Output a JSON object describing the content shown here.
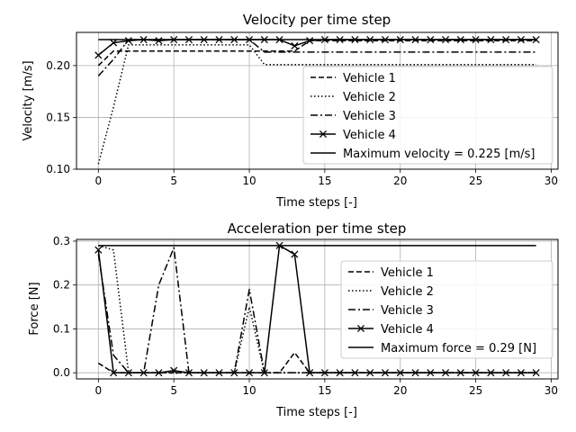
{
  "chart_data": [
    {
      "type": "line",
      "title": "Velocity per time step",
      "xlabel": "Time steps [-]",
      "ylabel": "Velocity [m/s]",
      "xlim": [
        -1.45,
        30.45
      ],
      "ylim": [
        0.1,
        0.232
      ],
      "xticks": [
        0,
        5,
        10,
        15,
        20,
        25,
        30
      ],
      "yticks": [
        0.1,
        0.15,
        0.2
      ],
      "ytick_labels": [
        "0.10",
        "0.15",
        "0.20"
      ],
      "grid": true,
      "legend_position": "lower-right",
      "series": [
        {
          "name": "Vehicle 1",
          "style": "dashed",
          "marker": "none",
          "x": [
            0,
            1,
            2,
            3,
            4,
            5,
            6,
            7,
            8,
            9,
            10,
            11,
            12,
            13,
            14,
            15,
            16,
            17,
            18,
            19,
            20,
            21,
            22,
            23,
            24,
            25,
            26,
            27,
            28,
            29
          ],
          "y": [
            0.2,
            0.214,
            0.214,
            0.214,
            0.214,
            0.214,
            0.214,
            0.214,
            0.214,
            0.214,
            0.214,
            0.214,
            0.214,
            0.214,
            0.224,
            0.224,
            0.224,
            0.224,
            0.224,
            0.224,
            0.224,
            0.224,
            0.224,
            0.224,
            0.224,
            0.224,
            0.224,
            0.224,
            0.224,
            0.224
          ]
        },
        {
          "name": "Vehicle 2",
          "style": "dotted",
          "marker": "none",
          "x": [
            0,
            1,
            2,
            3,
            4,
            5,
            6,
            7,
            8,
            9,
            10,
            11,
            12,
            13,
            14,
            15,
            16,
            17,
            18,
            19,
            20,
            21,
            22,
            23,
            24,
            25,
            26,
            27,
            28,
            29
          ],
          "y": [
            0.105,
            0.16,
            0.22,
            0.22,
            0.22,
            0.22,
            0.22,
            0.22,
            0.22,
            0.22,
            0.22,
            0.201,
            0.201,
            0.201,
            0.201,
            0.201,
            0.201,
            0.201,
            0.201,
            0.201,
            0.201,
            0.201,
            0.201,
            0.201,
            0.201,
            0.201,
            0.201,
            0.201,
            0.201,
            0.201
          ]
        },
        {
          "name": "Vehicle 3",
          "style": "dashdot",
          "marker": "none",
          "x": [
            0,
            1,
            2,
            3,
            4,
            5,
            6,
            7,
            8,
            9,
            10,
            11,
            12,
            13,
            14,
            15,
            16,
            17,
            18,
            19,
            20,
            21,
            22,
            23,
            24,
            25,
            26,
            27,
            28,
            29
          ],
          "y": [
            0.19,
            0.206,
            0.225,
            0.225,
            0.225,
            0.225,
            0.225,
            0.225,
            0.225,
            0.225,
            0.225,
            0.213,
            0.213,
            0.213,
            0.213,
            0.213,
            0.213,
            0.213,
            0.213,
            0.213,
            0.213,
            0.213,
            0.213,
            0.213,
            0.213,
            0.213,
            0.213,
            0.213,
            0.213,
            0.213
          ]
        },
        {
          "name": "Vehicle 4",
          "style": "solid",
          "marker": "x",
          "x": [
            0,
            1,
            2,
            3,
            4,
            5,
            6,
            7,
            8,
            9,
            10,
            11,
            12,
            13,
            14,
            15,
            16,
            17,
            18,
            19,
            20,
            21,
            22,
            23,
            24,
            25,
            26,
            27,
            28,
            29
          ],
          "y": [
            0.21,
            0.222,
            0.224,
            0.225,
            0.224,
            0.225,
            0.225,
            0.225,
            0.225,
            0.225,
            0.225,
            0.225,
            0.225,
            0.219,
            0.224,
            0.225,
            0.225,
            0.225,
            0.225,
            0.225,
            0.225,
            0.225,
            0.225,
            0.225,
            0.225,
            0.225,
            0.225,
            0.225,
            0.225,
            0.225
          ]
        },
        {
          "name": "Maximum velocity = 0.225 [m/s]",
          "style": "solid",
          "marker": "none",
          "x": [
            0,
            29
          ],
          "y": [
            0.225,
            0.225
          ]
        }
      ]
    },
    {
      "type": "line",
      "title": "Acceleration per time step",
      "xlabel": "Time steps [-]",
      "ylabel": "Force [N]",
      "xlim": [
        -1.45,
        30.45
      ],
      "ylim": [
        -0.014,
        0.304
      ],
      "xticks": [
        0,
        5,
        10,
        15,
        20,
        25,
        30
      ],
      "yticks": [
        0.0,
        0.1,
        0.2,
        0.3
      ],
      "ytick_labels": [
        "0.0",
        "0.1",
        "0.2",
        "0.3"
      ],
      "grid": true,
      "legend_position": "right",
      "series": [
        {
          "name": "Vehicle 1",
          "style": "dashed",
          "marker": "none",
          "x": [
            0,
            1,
            2,
            3,
            4,
            5,
            6,
            7,
            8,
            9,
            10,
            11,
            12,
            13,
            14,
            15,
            16,
            17,
            18,
            19,
            20,
            21,
            22,
            23,
            24,
            25,
            26,
            27,
            28,
            29
          ],
          "y": [
            0.022,
            0.0,
            0.0,
            0.0,
            0.0,
            0.0,
            0.0,
            0.0,
            0.0,
            0.0,
            0.0,
            0.0,
            0.0,
            0.046,
            0.0,
            0.0,
            0.0,
            0.0,
            0.0,
            0.0,
            0.0,
            0.0,
            0.0,
            0.0,
            0.0,
            0.0,
            0.0,
            0.0,
            0.0,
            0.0
          ]
        },
        {
          "name": "Vehicle 2",
          "style": "dotted",
          "marker": "none",
          "x": [
            0,
            1,
            2,
            3,
            4,
            5,
            6,
            7,
            8,
            9,
            10,
            11,
            12,
            13,
            14,
            15,
            16,
            17,
            18,
            19,
            20,
            21,
            22,
            23,
            24,
            25,
            26,
            27,
            28,
            29
          ],
          "y": [
            0.29,
            0.28,
            0.0,
            0.0,
            0.0,
            0.0,
            0.0,
            0.0,
            0.0,
            0.0,
            0.15,
            0.0,
            0.0,
            0.0,
            0.0,
            0.0,
            0.0,
            0.0,
            0.0,
            0.0,
            0.0,
            0.0,
            0.0,
            0.0,
            0.0,
            0.0,
            0.0,
            0.0,
            0.0,
            0.0
          ]
        },
        {
          "name": "Vehicle 3",
          "style": "dashdot",
          "marker": "none",
          "x": [
            0,
            1,
            2,
            3,
            4,
            5,
            6,
            7,
            8,
            9,
            10,
            11,
            12,
            13,
            14,
            15,
            16,
            17,
            18,
            19,
            20,
            21,
            22,
            23,
            24,
            25,
            26,
            27,
            28,
            29
          ],
          "y": [
            0.27,
            0.04,
            0.0,
            0.0,
            0.2,
            0.285,
            0.0,
            0.0,
            0.0,
            0.0,
            0.19,
            0.0,
            0.0,
            0.0,
            0.0,
            0.0,
            0.0,
            0.0,
            0.0,
            0.0,
            0.0,
            0.0,
            0.0,
            0.0,
            0.0,
            0.0,
            0.0,
            0.0,
            0.0,
            0.0
          ]
        },
        {
          "name": "Vehicle 4",
          "style": "solid",
          "marker": "x",
          "x": [
            0,
            1,
            2,
            3,
            4,
            5,
            6,
            7,
            8,
            9,
            10,
            11,
            12,
            13,
            14,
            15,
            16,
            17,
            18,
            19,
            20,
            21,
            22,
            23,
            24,
            25,
            26,
            27,
            28,
            29
          ],
          "y": [
            0.28,
            0.0,
            0.0,
            0.0,
            0.0,
            0.005,
            0.0,
            0.0,
            0.0,
            0.0,
            0.0,
            0.0,
            0.29,
            0.27,
            0.0,
            0.0,
            0.0,
            0.0,
            0.0,
            0.0,
            0.0,
            0.0,
            0.0,
            0.0,
            0.0,
            0.0,
            0.0,
            0.0,
            0.0,
            0.0
          ]
        },
        {
          "name": "Maximum force = 0.29 [N]",
          "style": "solid",
          "marker": "none",
          "x": [
            0,
            29
          ],
          "y": [
            0.29,
            0.29
          ]
        }
      ]
    }
  ]
}
